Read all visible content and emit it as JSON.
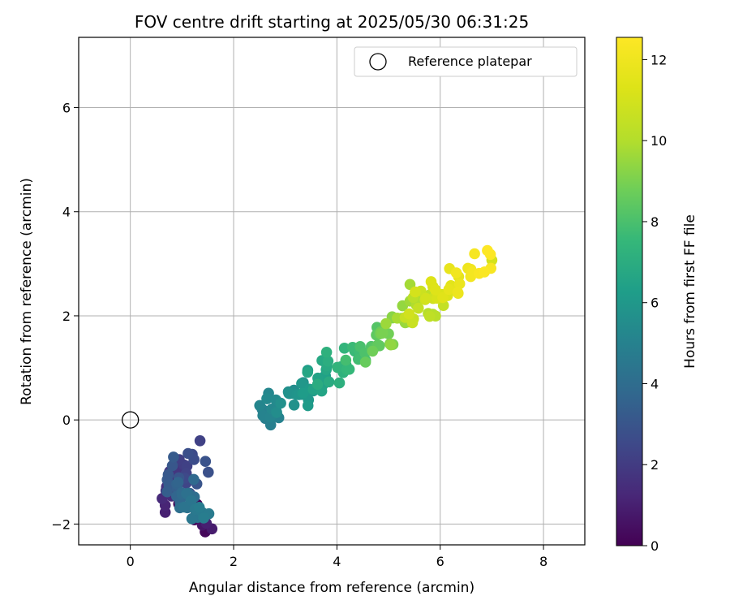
{
  "chart_data": {
    "type": "scatter",
    "title": "FOV centre drift starting at 2025/05/30 06:31:25",
    "xlabel": "Angular distance from reference (arcmin)",
    "ylabel": "Rotation from reference (arcmin)",
    "xlim": [
      -1,
      8.8
    ],
    "ylim": [
      -2.4,
      7.35
    ],
    "xticks": [
      0,
      2,
      4,
      6,
      8
    ],
    "yticks": [
      -2,
      0,
      2,
      4,
      6
    ],
    "grid": true,
    "legend": {
      "placement": "top-right",
      "entries": [
        "Reference platepar"
      ]
    },
    "reference_point": {
      "x": 0,
      "y": 0,
      "label": "Reference platepar"
    },
    "colorbar": {
      "label": "Hours from first FF file",
      "colormap": "viridis",
      "range": [
        0,
        12.55
      ],
      "ticks": [
        0,
        2,
        4,
        6,
        8,
        10,
        12
      ]
    },
    "series": [
      {
        "hours": [
          0.0,
          1.0
        ],
        "x": [
          1.05,
          1.5
        ],
        "y": [
          -1.6,
          -2.0
        ],
        "n": 8,
        "jitter": [
          0.12,
          0.12
        ]
      },
      {
        "hours": [
          1.0,
          3.0
        ],
        "x": [
          0.65,
          1.35
        ],
        "y": [
          -1.4,
          -0.8
        ],
        "n": 26,
        "jitter": [
          0.12,
          0.25
        ]
      },
      {
        "hours": [
          3.0,
          4.8
        ],
        "x": [
          0.75,
          1.35
        ],
        "y": [
          -1.0,
          -1.8
        ],
        "n": 32,
        "jitter": [
          0.12,
          0.2
        ]
      },
      {
        "hours": [
          4.8,
          6.5
        ],
        "x": [
          2.4,
          3.8
        ],
        "y": [
          0.0,
          0.85
        ],
        "n": 40,
        "jitter": [
          0.12,
          0.15
        ]
      },
      {
        "hours": [
          6.5,
          8.5
        ],
        "x": [
          3.5,
          4.9
        ],
        "y": [
          0.65,
          1.6
        ],
        "n": 32,
        "jitter": [
          0.12,
          0.16
        ]
      },
      {
        "hours": [
          8.5,
          10.5
        ],
        "x": [
          4.7,
          5.9
        ],
        "y": [
          1.5,
          2.3
        ],
        "n": 30,
        "jitter": [
          0.12,
          0.16
        ]
      },
      {
        "hours": [
          10.5,
          12.55
        ],
        "x": [
          5.4,
          7.0
        ],
        "y": [
          2.0,
          3.0
        ],
        "n": 36,
        "jitter": [
          0.12,
          0.16
        ]
      }
    ],
    "outliers": [
      {
        "x": 1.35,
        "y": -0.4,
        "hours": 2.2
      },
      {
        "x": 1.45,
        "y": -2.15,
        "hours": 0.2
      },
      {
        "x": 7.0,
        "y": 3.07,
        "hours": 11.0
      },
      {
        "x": 4.95,
        "y": 1.85,
        "hours": 9.6
      },
      {
        "x": 3.8,
        "y": 1.3,
        "hours": 7.2
      }
    ]
  }
}
